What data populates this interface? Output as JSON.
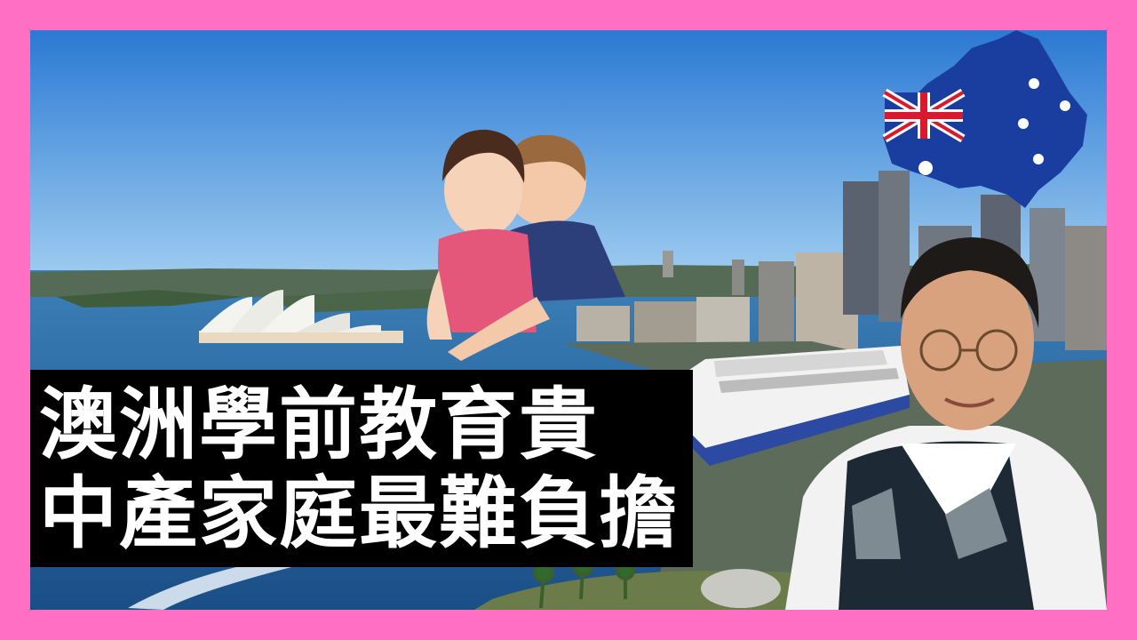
{
  "headline": {
    "line1": "澳洲學前教育貴",
    "line2": "中產家庭最難負擔"
  },
  "colors": {
    "frame": "#ff6fc4",
    "sky": "#4f9be3",
    "banner_bg": "#000000",
    "banner_text": "#ffffff",
    "flag_blue": "#1a3ea0",
    "flag_red": "#d8192f"
  },
  "icons": {
    "map": "australia-flag-map-icon"
  }
}
